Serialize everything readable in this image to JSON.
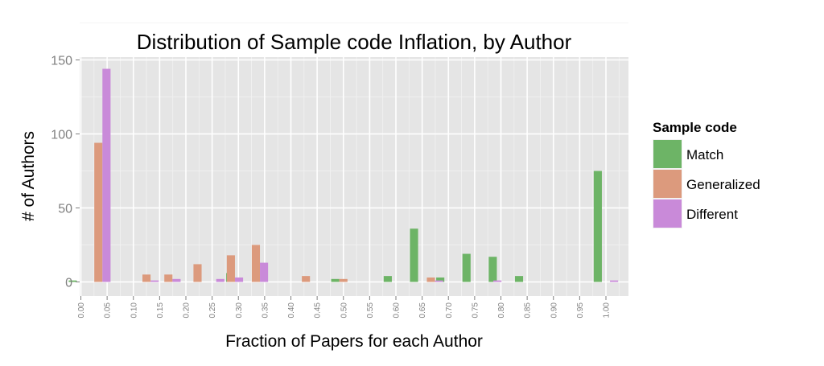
{
  "chart_data": {
    "type": "bar",
    "title": "Distribution of Sample code Inflation, by Author",
    "xlabel": "Fraction of Papers for each Author",
    "ylabel": "# of Authors",
    "xlim": [
      0,
      1.05
    ],
    "ylim": [
      -8,
      155
    ],
    "yticks": [
      0,
      50,
      100,
      150
    ],
    "xticks": [
      "0.00",
      "0.05",
      "0.10",
      "0.15",
      "0.20",
      "0.25",
      "0.30",
      "0.35",
      "0.40",
      "0.45",
      "0.50",
      "0.55",
      "0.60",
      "0.65",
      "0.70",
      "0.75",
      "0.80",
      "0.85",
      "0.90",
      "0.95",
      "1.00"
    ],
    "grid": true,
    "legend_title": "Sample code",
    "legend_position": "right",
    "series": [
      {
        "name": "Match",
        "color": "#6db466",
        "points": [
          [
            0.0,
            1
          ],
          [
            0.3,
            6
          ],
          [
            0.5,
            2
          ],
          [
            0.6,
            4
          ],
          [
            0.65,
            36
          ],
          [
            0.7,
            3
          ],
          [
            0.75,
            19
          ],
          [
            0.8,
            17
          ],
          [
            0.85,
            4
          ],
          [
            1.0,
            75
          ]
        ]
      },
      {
        "name": "Generalized",
        "color": "#dc9a7d",
        "points": [
          [
            0.0333,
            94
          ],
          [
            0.125,
            5
          ],
          [
            0.1667,
            5
          ],
          [
            0.2222,
            12
          ],
          [
            0.2857,
            18
          ],
          [
            0.3333,
            25
          ],
          [
            0.4286,
            4
          ],
          [
            0.5,
            2
          ],
          [
            0.6667,
            3
          ]
        ]
      },
      {
        "name": "Different",
        "color": "#c98ad9",
        "points": [
          [
            0.0333,
            144
          ],
          [
            0.125,
            1
          ],
          [
            0.1667,
            2
          ],
          [
            0.25,
            2
          ],
          [
            0.2857,
            3
          ],
          [
            0.3333,
            13
          ],
          [
            0.6667,
            1
          ],
          [
            0.7778,
            1
          ],
          [
            1.0,
            1
          ]
        ]
      }
    ]
  }
}
